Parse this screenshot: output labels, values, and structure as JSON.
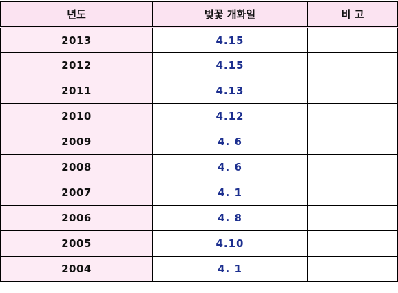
{
  "table": {
    "headers": [
      "년도",
      "벚꽃 개화일",
      "비 고"
    ],
    "rows": [
      {
        "year": "2013",
        "date": "4.15",
        "note": ""
      },
      {
        "year": "2012",
        "date": "4.15",
        "note": ""
      },
      {
        "year": "2011",
        "date": "4.13",
        "note": ""
      },
      {
        "year": "2010",
        "date": "4.12",
        "note": ""
      },
      {
        "year": "2009",
        "date": "4. 6",
        "note": ""
      },
      {
        "year": "2008",
        "date": "4. 6",
        "note": ""
      },
      {
        "year": "2007",
        "date": "4. 1",
        "note": ""
      },
      {
        "year": "2006",
        "date": "4. 8",
        "note": ""
      },
      {
        "year": "2005",
        "date": "4.10",
        "note": ""
      },
      {
        "year": "2004",
        "date": "4. 1",
        "note": ""
      }
    ]
  },
  "colors": {
    "header_bg": "#fbe3f1",
    "year_bg": "#fdebf5",
    "date_text": "#1c2f8f",
    "border": "#000000"
  }
}
